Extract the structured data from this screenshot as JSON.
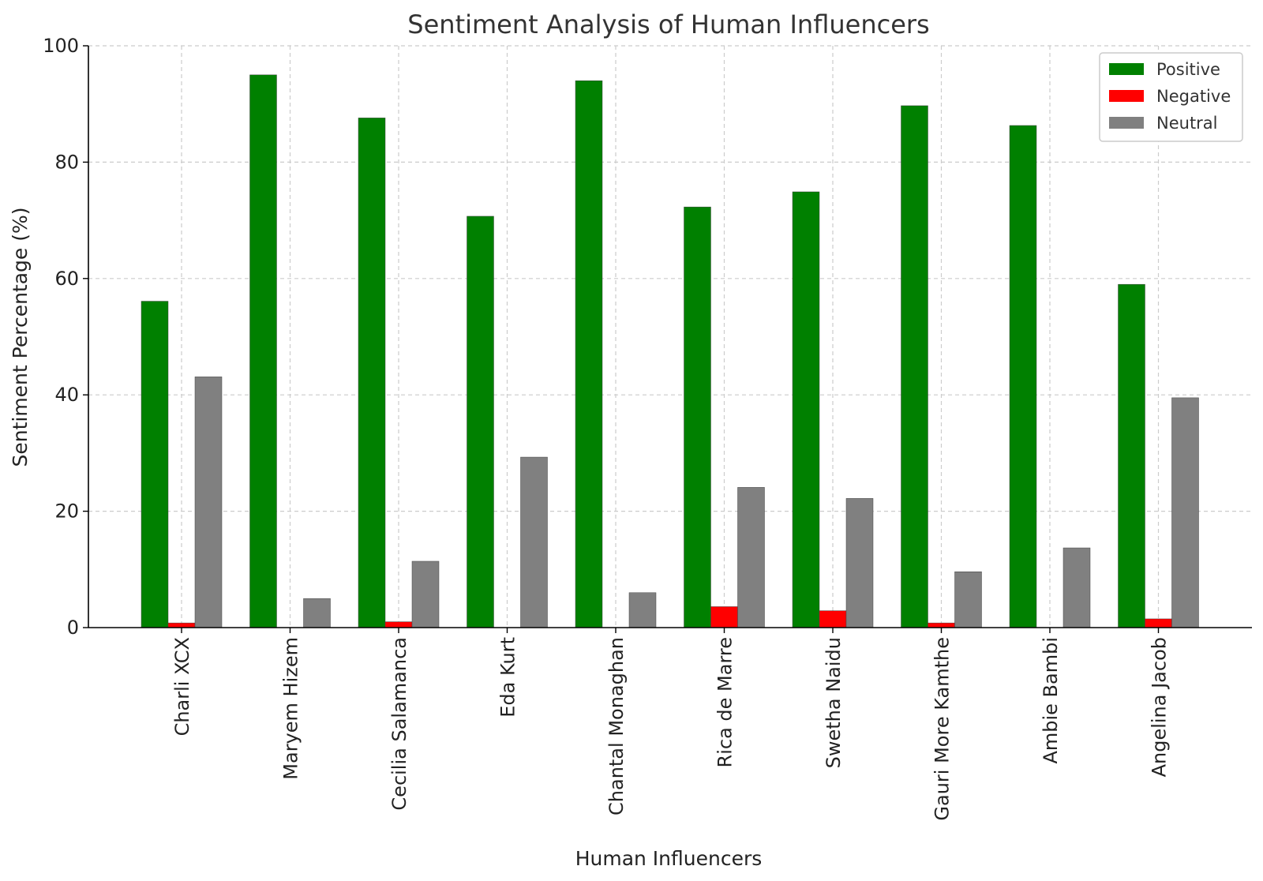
{
  "chart_data": {
    "type": "bar",
    "title": "Sentiment Analysis of Human Influencers",
    "xlabel": "Human Influencers",
    "ylabel": "Sentiment Percentage (%)",
    "ylim": [
      0,
      100
    ],
    "yticks": [
      0,
      20,
      40,
      60,
      80,
      100
    ],
    "grid": true,
    "legend_position": "top-right",
    "categories": [
      "Charli XCX",
      "Maryem Hizem",
      "Cecilia Salamanca",
      "Eda Kurt",
      "Chantal Monaghan",
      "Rica de Marre",
      "Swetha Naidu",
      "Gauri More Kamthe",
      "Ambie Bambi",
      "Angelina Jacob"
    ],
    "series": [
      {
        "name": "Positive",
        "color": "#008000",
        "values": [
          56.1,
          95.0,
          87.6,
          70.7,
          94.0,
          72.3,
          74.9,
          89.7,
          86.3,
          59.0
        ]
      },
      {
        "name": "Negative",
        "color": "#ff0000",
        "values": [
          0.8,
          0.0,
          1.0,
          0.0,
          0.0,
          3.6,
          2.9,
          0.8,
          0.0,
          1.5
        ]
      },
      {
        "name": "Neutral",
        "color": "#808080",
        "values": [
          43.1,
          5.0,
          11.4,
          29.3,
          6.0,
          24.1,
          22.2,
          9.6,
          13.7,
          39.5
        ]
      }
    ]
  }
}
